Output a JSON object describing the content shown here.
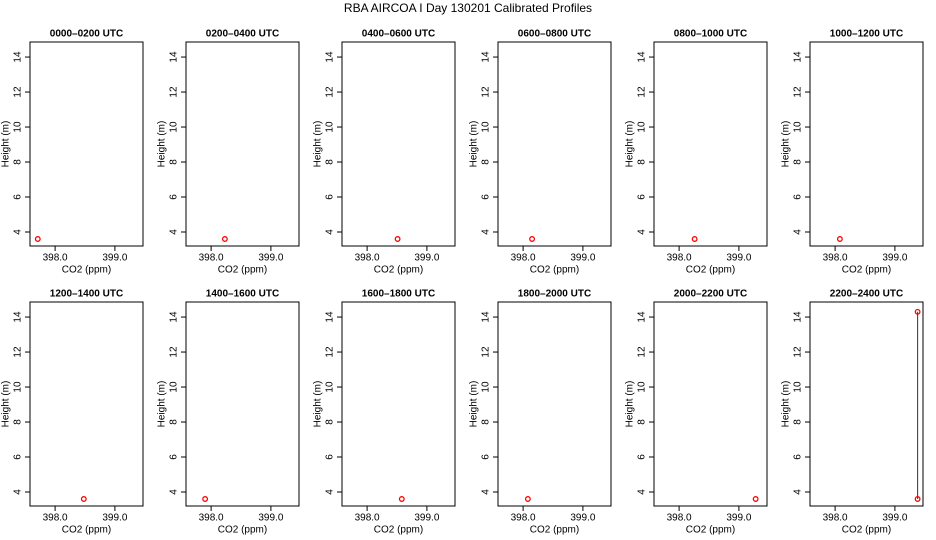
{
  "title": "RBA AIRCOA I  Day 130201  Calibrated Profiles",
  "chart_data": [
    {
      "type": "scatter",
      "title": "0000–0200 UTC",
      "xlabel": "CO2 (ppm)",
      "ylabel": "Height (m)",
      "x": [
        397.71
      ],
      "y": [
        3.6
      ],
      "color": "#ff0000",
      "xlim": [
        397.58,
        399.47
      ],
      "ylim": [
        3.2,
        14.86
      ],
      "xticks": [
        {
          "value": 398,
          "label": "398.0"
        },
        {
          "value": 399,
          "label": "399.0"
        }
      ],
      "yticks": [
        4,
        6,
        8,
        10,
        12,
        14
      ]
    },
    {
      "type": "scatter",
      "title": "0200–0400 UTC",
      "xlabel": "CO2 (ppm)",
      "ylabel": "Height (m)",
      "x": [
        398.23
      ],
      "y": [
        3.6
      ],
      "color": "#ff0000",
      "xlim": [
        397.58,
        399.47
      ],
      "ylim": [
        3.2,
        14.86
      ],
      "xticks": [
        {
          "value": 398,
          "label": "398.0"
        },
        {
          "value": 399,
          "label": "399.0"
        }
      ],
      "yticks": [
        4,
        6,
        8,
        10,
        12,
        14
      ]
    },
    {
      "type": "scatter",
      "title": "0400–0600 UTC",
      "xlabel": "CO2 (ppm)",
      "ylabel": "Height (m)",
      "x": [
        398.51
      ],
      "y": [
        3.6
      ],
      "color": "#ff0000",
      "xlim": [
        397.58,
        399.47
      ],
      "ylim": [
        3.2,
        14.86
      ],
      "xticks": [
        {
          "value": 398,
          "label": "398.0"
        },
        {
          "value": 399,
          "label": "399.0"
        }
      ],
      "yticks": [
        4,
        6,
        8,
        10,
        12,
        14
      ]
    },
    {
      "type": "scatter",
      "title": "0600–0800 UTC",
      "xlabel": "CO2 (ppm)",
      "ylabel": "Height (m)",
      "x": [
        398.15
      ],
      "y": [
        3.6
      ],
      "color": "#ff0000",
      "xlim": [
        397.58,
        399.47
      ],
      "ylim": [
        3.2,
        14.86
      ],
      "xticks": [
        {
          "value": 398,
          "label": "398.0"
        },
        {
          "value": 399,
          "label": "399.0"
        }
      ],
      "yticks": [
        4,
        6,
        8,
        10,
        12,
        14
      ]
    },
    {
      "type": "scatter",
      "title": "0800–1000 UTC",
      "xlabel": "CO2 (ppm)",
      "ylabel": "Height (m)",
      "x": [
        398.26
      ],
      "y": [
        3.6
      ],
      "color": "#ff0000",
      "xlim": [
        397.58,
        399.47
      ],
      "ylim": [
        3.2,
        14.86
      ],
      "xticks": [
        {
          "value": 398,
          "label": "398.0"
        },
        {
          "value": 399,
          "label": "399.0"
        }
      ],
      "yticks": [
        4,
        6,
        8,
        10,
        12,
        14
      ]
    },
    {
      "type": "scatter",
      "title": "1000–1200 UTC",
      "xlabel": "CO2 (ppm)",
      "ylabel": "Height (m)",
      "x": [
        398.08
      ],
      "y": [
        3.6
      ],
      "color": "#ff0000",
      "xlim": [
        397.58,
        399.47
      ],
      "ylim": [
        3.2,
        14.86
      ],
      "xticks": [
        {
          "value": 398,
          "label": "398.0"
        },
        {
          "value": 399,
          "label": "399.0"
        }
      ],
      "yticks": [
        4,
        6,
        8,
        10,
        12,
        14
      ]
    },
    {
      "type": "scatter",
      "title": "1200–1400 UTC",
      "xlabel": "CO2 (ppm)",
      "ylabel": "Height (m)",
      "x": [
        398.48
      ],
      "y": [
        3.6
      ],
      "color": "#ff0000",
      "xlim": [
        397.58,
        399.47
      ],
      "ylim": [
        3.2,
        14.86
      ],
      "xticks": [
        {
          "value": 398,
          "label": "398.0"
        },
        {
          "value": 399,
          "label": "399.0"
        }
      ],
      "yticks": [
        4,
        6,
        8,
        10,
        12,
        14
      ]
    },
    {
      "type": "scatter",
      "title": "1400–1600 UTC",
      "xlabel": "CO2 (ppm)",
      "ylabel": "Height (m)",
      "x": [
        397.9
      ],
      "y": [
        3.6
      ],
      "color": "#ff0000",
      "xlim": [
        397.58,
        399.47
      ],
      "ylim": [
        3.2,
        14.86
      ],
      "xticks": [
        {
          "value": 398,
          "label": "398.0"
        },
        {
          "value": 399,
          "label": "399.0"
        }
      ],
      "yticks": [
        4,
        6,
        8,
        10,
        12,
        14
      ]
    },
    {
      "type": "scatter",
      "title": "1600–1800 UTC",
      "xlabel": "CO2 (ppm)",
      "ylabel": "Height (m)",
      "x": [
        398.58
      ],
      "y": [
        3.6
      ],
      "color": "#ff0000",
      "xlim": [
        397.58,
        399.47
      ],
      "ylim": [
        3.2,
        14.86
      ],
      "xticks": [
        {
          "value": 398,
          "label": "398.0"
        },
        {
          "value": 399,
          "label": "399.0"
        }
      ],
      "yticks": [
        4,
        6,
        8,
        10,
        12,
        14
      ]
    },
    {
      "type": "scatter",
      "title": "1800–2000 UTC",
      "xlabel": "CO2 (ppm)",
      "ylabel": "Height (m)",
      "x": [
        398.08
      ],
      "y": [
        3.6
      ],
      "color": "#ff0000",
      "xlim": [
        397.58,
        399.47
      ],
      "ylim": [
        3.2,
        14.86
      ],
      "xticks": [
        {
          "value": 398,
          "label": "398.0"
        },
        {
          "value": 399,
          "label": "399.0"
        }
      ],
      "yticks": [
        4,
        6,
        8,
        10,
        12,
        14
      ]
    },
    {
      "type": "scatter",
      "title": "2000–2200 UTC",
      "xlabel": "CO2 (ppm)",
      "ylabel": "Height (m)",
      "x": [
        399.28
      ],
      "y": [
        3.6
      ],
      "color": "#ff0000",
      "xlim": [
        397.58,
        399.47
      ],
      "ylim": [
        3.2,
        14.86
      ],
      "xticks": [
        {
          "value": 398,
          "label": "398.0"
        },
        {
          "value": 399,
          "label": "399.0"
        }
      ],
      "yticks": [
        4,
        6,
        8,
        10,
        12,
        14
      ]
    },
    {
      "type": "scatter",
      "title": "2200–2400 UTC",
      "xlabel": "CO2 (ppm)",
      "ylabel": "Height (m)",
      "x": [
        399.38,
        399.38
      ],
      "y": [
        3.6,
        14.3
      ],
      "color": "#ff0000",
      "connect": true,
      "xlim": [
        397.58,
        399.47
      ],
      "ylim": [
        3.2,
        14.86
      ],
      "xticks": [
        {
          "value": 398,
          "label": "398.0"
        },
        {
          "value": 399,
          "label": "399.0"
        }
      ],
      "yticks": [
        4,
        6,
        8,
        10,
        12,
        14
      ]
    }
  ]
}
